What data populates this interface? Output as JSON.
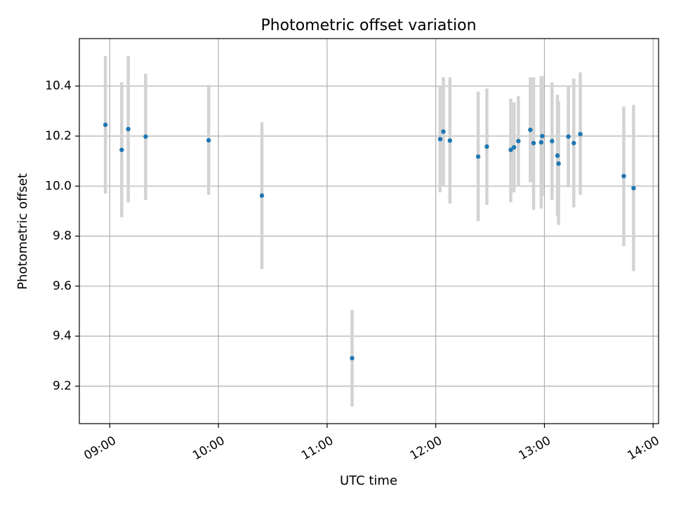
{
  "chart_data": {
    "type": "scatter",
    "title": "Photometric offset variation",
    "xlabel": "UTC time",
    "ylabel": "Photometric offset",
    "xlim": [
      8.72,
      14.05
    ],
    "ylim": [
      9.05,
      10.59
    ],
    "grid": true,
    "x_ticks": [
      9,
      10,
      11,
      12,
      13,
      14
    ],
    "x_tick_labels": [
      "09:00",
      "10:00",
      "11:00",
      "12:00",
      "13:00",
      "14:00"
    ],
    "y_ticks": [
      9.2,
      9.4,
      9.6,
      9.8,
      10.0,
      10.2,
      10.4
    ],
    "y_tick_labels": [
      "9.2",
      "9.4",
      "9.6",
      "9.8",
      "10.0",
      "10.2",
      "10.4"
    ],
    "colors": {
      "marker": "#1f77b4",
      "errorbar": "#d3d3d3",
      "grid": "#b0b0b0"
    },
    "series": [
      {
        "name": "offset",
        "points": [
          {
            "x": 8.96,
            "y": 10.245,
            "low": 9.97,
            "high": 10.52
          },
          {
            "x": 9.11,
            "y": 10.145,
            "low": 9.875,
            "high": 10.415
          },
          {
            "x": 9.17,
            "y": 10.228,
            "low": 9.935,
            "high": 10.52
          },
          {
            "x": 9.33,
            "y": 10.198,
            "low": 9.945,
            "high": 10.45
          },
          {
            "x": 9.91,
            "y": 10.183,
            "low": 9.965,
            "high": 10.405
          },
          {
            "x": 10.4,
            "y": 9.962,
            "low": 9.668,
            "high": 10.255
          },
          {
            "x": 11.23,
            "y": 9.312,
            "low": 9.118,
            "high": 9.505
          },
          {
            "x": 12.04,
            "y": 10.188,
            "low": 9.975,
            "high": 10.4
          },
          {
            "x": 12.07,
            "y": 10.218,
            "low": 10.0,
            "high": 10.435
          },
          {
            "x": 12.13,
            "y": 10.182,
            "low": 9.93,
            "high": 10.435
          },
          {
            "x": 12.39,
            "y": 10.118,
            "low": 9.86,
            "high": 10.378
          },
          {
            "x": 12.47,
            "y": 10.158,
            "low": 9.925,
            "high": 10.39
          },
          {
            "x": 12.69,
            "y": 10.145,
            "low": 9.935,
            "high": 10.35
          },
          {
            "x": 12.72,
            "y": 10.155,
            "low": 9.975,
            "high": 10.335
          },
          {
            "x": 12.76,
            "y": 10.18,
            "low": 10.0,
            "high": 10.36
          },
          {
            "x": 12.87,
            "y": 10.225,
            "low": 10.015,
            "high": 10.435
          },
          {
            "x": 12.9,
            "y": 10.172,
            "low": 9.905,
            "high": 10.435
          },
          {
            "x": 12.97,
            "y": 10.175,
            "low": 9.91,
            "high": 10.44
          },
          {
            "x": 12.98,
            "y": 10.2,
            "low": 9.96,
            "high": 10.44
          },
          {
            "x": 13.07,
            "y": 10.18,
            "low": 9.945,
            "high": 10.415
          },
          {
            "x": 13.12,
            "y": 10.122,
            "low": 9.88,
            "high": 10.365
          },
          {
            "x": 13.13,
            "y": 10.09,
            "low": 9.845,
            "high": 10.34
          },
          {
            "x": 13.22,
            "y": 10.198,
            "low": 9.995,
            "high": 10.4
          },
          {
            "x": 13.27,
            "y": 10.172,
            "low": 9.915,
            "high": 10.43
          },
          {
            "x": 13.33,
            "y": 10.208,
            "low": 9.965,
            "high": 10.455
          },
          {
            "x": 13.73,
            "y": 10.04,
            "low": 9.76,
            "high": 10.318
          },
          {
            "x": 13.82,
            "y": 9.992,
            "low": 9.66,
            "high": 10.325
          }
        ]
      }
    ]
  }
}
